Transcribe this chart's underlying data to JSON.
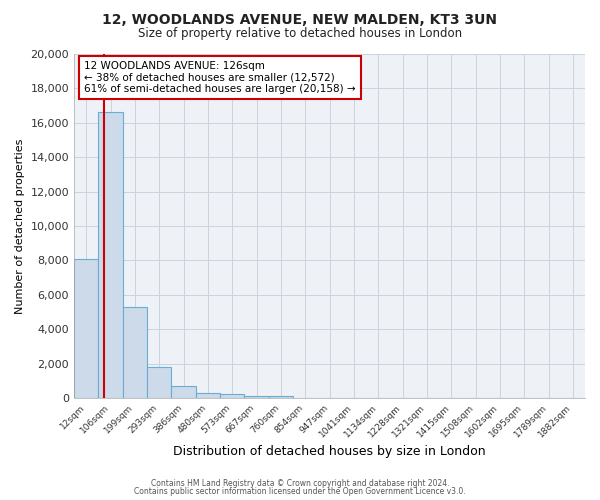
{
  "title": "12, WOODLANDS AVENUE, NEW MALDEN, KT3 3UN",
  "subtitle": "Size of property relative to detached houses in London",
  "xlabel": "Distribution of detached houses by size in London",
  "ylabel": "Number of detached properties",
  "bin_labels": [
    "12sqm",
    "106sqm",
    "199sqm",
    "293sqm",
    "386sqm",
    "480sqm",
    "573sqm",
    "667sqm",
    "760sqm",
    "854sqm",
    "947sqm",
    "1041sqm",
    "1134sqm",
    "1228sqm",
    "1321sqm",
    "1415sqm",
    "1508sqm",
    "1602sqm",
    "1695sqm",
    "1789sqm",
    "1882sqm"
  ],
  "bar_heights": [
    8100,
    16600,
    5300,
    1800,
    700,
    270,
    200,
    100,
    100,
    0,
    0,
    0,
    0,
    0,
    0,
    0,
    0,
    0,
    0,
    0,
    0
  ],
  "bar_color": "#ccdaea",
  "bar_edge_color": "#6aacd4",
  "property_line_color": "#cc0000",
  "annotation_title": "12 WOODLANDS AVENUE: 126sqm",
  "annotation_line1": "← 38% of detached houses are smaller (12,572)",
  "annotation_line2": "61% of semi-detached houses are larger (20,158) →",
  "annotation_box_color": "white",
  "annotation_box_edge": "#cc0000",
  "ylim": [
    0,
    20000
  ],
  "yticks": [
    0,
    2000,
    4000,
    6000,
    8000,
    10000,
    12000,
    14000,
    16000,
    18000,
    20000
  ],
  "footer1": "Contains HM Land Registry data © Crown copyright and database right 2024.",
  "footer2": "Contains public sector information licensed under the Open Government Licence v3.0.",
  "bg_color": "#ffffff",
  "plot_bg_color": "#eef2f7",
  "grid_color": "#c8d4e0"
}
